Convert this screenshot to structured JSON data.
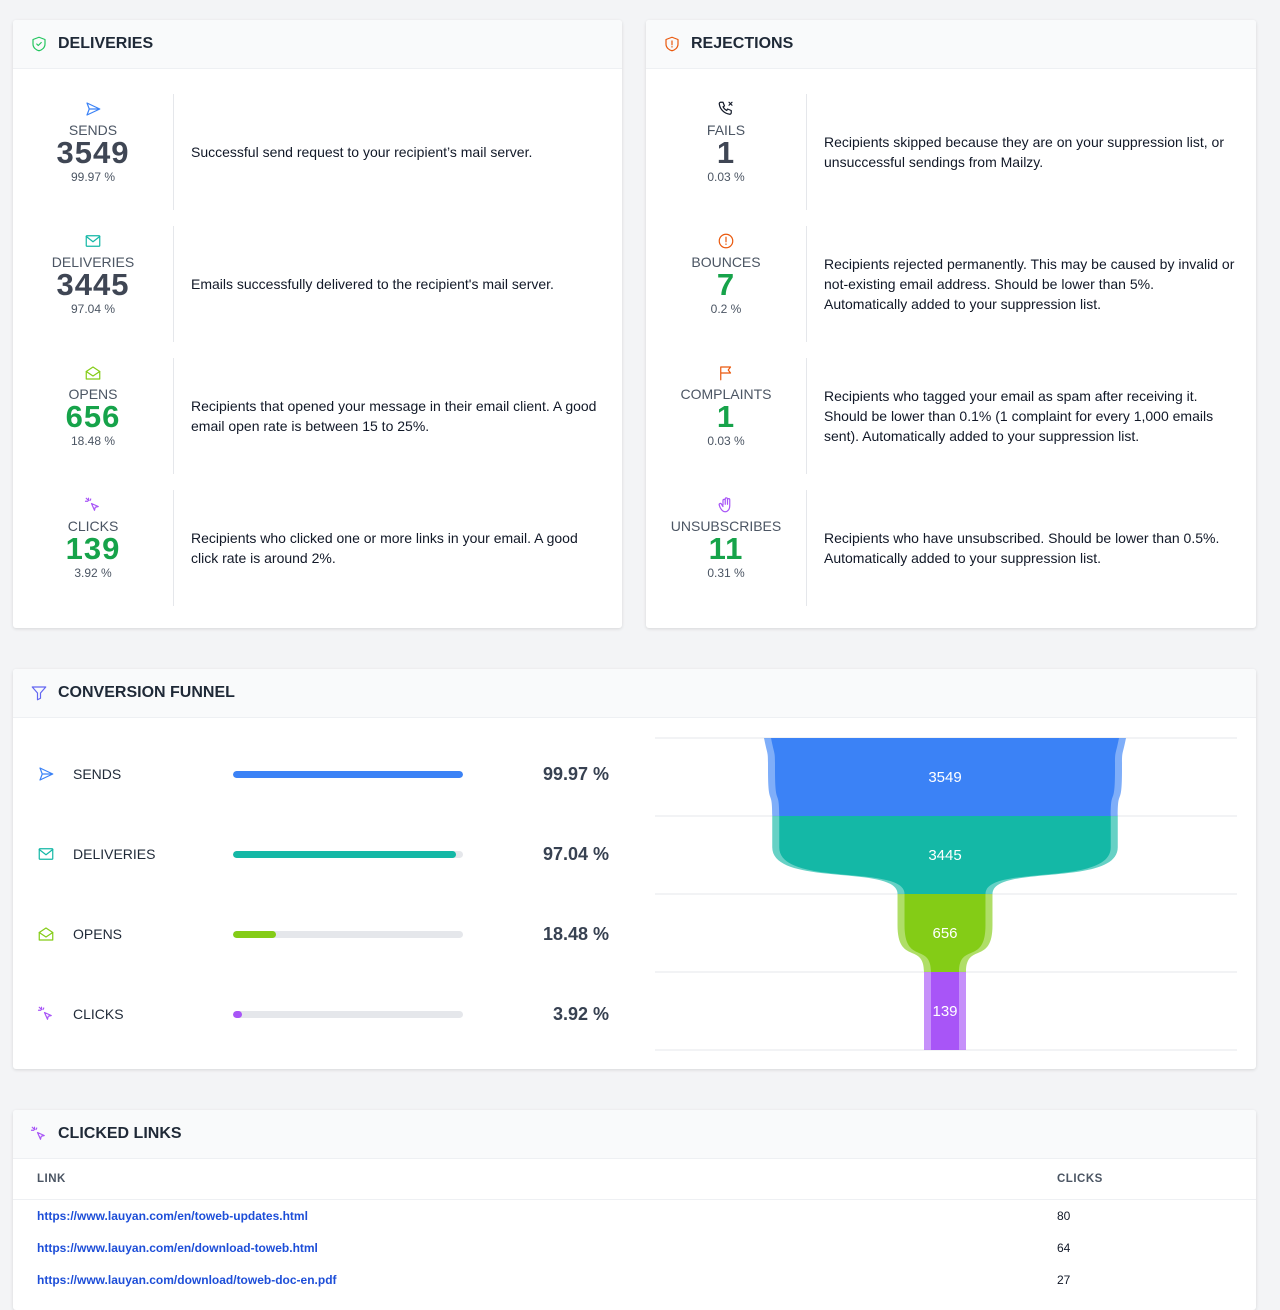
{
  "deliveries": {
    "title": "DELIVERIES",
    "items": [
      {
        "label": "SENDS",
        "count": 3549,
        "percent": {
          "value": 99.97,
          "label": "99.97 %"
        },
        "color": "#3f4654",
        "description": "Successful send request to your recipient’s mail server."
      },
      {
        "label": "DELIVERIES",
        "count": 3445,
        "percent": {
          "value": 97.04,
          "label": "97.04 %"
        },
        "color": "#3f4654",
        "description": "Emails successfully delivered to the recipient's mail server."
      },
      {
        "label": "OPENS",
        "count": 656,
        "percent": {
          "value": 18.48,
          "label": "18.48 %"
        },
        "color": "#16a34a",
        "description": "Recipients that opened your message in their email client. A good email open rate is between 15 to 25%."
      },
      {
        "label": "CLICKS",
        "count": 139,
        "percent": {
          "value": 3.92,
          "label": "3.92 %"
        },
        "color": "#16a34a",
        "description": "Recipients who clicked one or more links in your email. A good click rate is around 2%."
      }
    ]
  },
  "rejections": {
    "title": "REJECTIONS",
    "items": [
      {
        "label": "FAILS",
        "count": 1,
        "percent": {
          "value": 0.03,
          "label": "0.03 %"
        },
        "color": "#3f4654",
        "description": "Recipients skipped because they are on your suppression list, or unsuccessful sendings from Mailzy."
      },
      {
        "label": "BOUNCES",
        "count": 7,
        "percent": {
          "value": 0.2,
          "label": "0.2 %"
        },
        "color": "#16a34a",
        "description": "Recipients rejected permanently. This may be caused by invalid or not-existing email address. Should be lower than 5%. Automatically added to your suppression list."
      },
      {
        "label": "COMPLAINTS",
        "count": 1,
        "percent": {
          "value": 0.03,
          "label": "0.03 %"
        },
        "color": "#16a34a",
        "description": "Recipients who tagged your email as spam after receiving it. Should be lower than 0.1% (1 complaint for every 1,000 emails sent). Automatically added to your suppression list."
      },
      {
        "label": "UNSUBSCRIBES",
        "count": 11,
        "percent": {
          "value": 0.31,
          "label": "0.31 %"
        },
        "color": "#16a34a",
        "description": "Recipients who have unsubscribed. Should be lower than 0.5%. Automatically added to your suppression list."
      }
    ]
  },
  "funnel": {
    "title": "CONVERSION FUNNEL",
    "colors": [
      "#3b82f6",
      "#14b8a6",
      "#84cc16",
      "#a855f7"
    ]
  },
  "clicked_links": {
    "title": "CLICKED LINKS",
    "columns": [
      "LINK",
      "CLICKS"
    ],
    "rows": [
      [
        "https://www.lauyan.com/en/toweb-updates.html",
        80
      ],
      [
        "https://www.lauyan.com/en/download-toweb.html",
        64
      ],
      [
        "https://www.lauyan.com/download/toweb-doc-en.pdf",
        27
      ]
    ]
  }
}
